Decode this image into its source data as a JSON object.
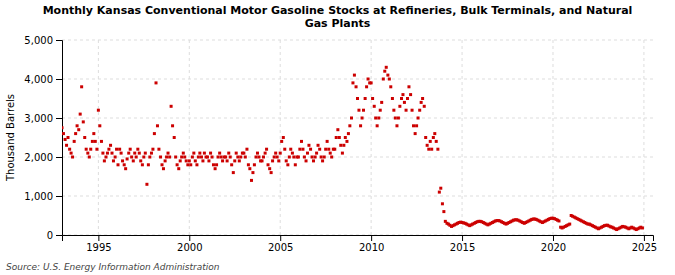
{
  "chart_data": {
    "type": "scatter",
    "title": "Monthly Kansas Conventional Motor Gasoline Stocks at Refineries, Bulk Terminals, and Natural\nGas Plants",
    "ylabel": "Thousand Barrels",
    "annotations": [
      "Source: U.S. Energy Information Administration"
    ],
    "color": "#cc0000",
    "marker": "square",
    "grid": true,
    "xlim": [
      1993.0,
      2025.5
    ],
    "xticks": [
      1995,
      2000,
      2005,
      2010,
      2015,
      2020,
      2025
    ],
    "ylim": [
      0,
      5000
    ],
    "yticks": [
      0,
      {
        "value": 1000,
        "label": "1,000"
      },
      {
        "value": 2000,
        "label": "2,000"
      },
      {
        "value": 3000,
        "label": "3,000"
      },
      {
        "value": 4000,
        "label": "4,000"
      },
      {
        "value": 5000,
        "label": "5,000"
      }
    ],
    "x": [
      1993.0,
      1993.08,
      1993.17,
      1993.25,
      1993.33,
      1993.42,
      1993.5,
      1993.58,
      1993.67,
      1993.75,
      1993.83,
      1993.92,
      1994.0,
      1994.08,
      1994.17,
      1994.25,
      1994.33,
      1994.42,
      1994.5,
      1994.58,
      1994.67,
      1994.75,
      1994.83,
      1994.92,
      1995.0,
      1995.08,
      1995.17,
      1995.25,
      1995.33,
      1995.42,
      1995.5,
      1995.58,
      1995.67,
      1995.75,
      1995.83,
      1995.92,
      1996.0,
      1996.08,
      1996.17,
      1996.25,
      1996.33,
      1996.42,
      1996.5,
      1996.58,
      1996.67,
      1996.75,
      1996.83,
      1996.92,
      1997.0,
      1997.08,
      1997.17,
      1997.25,
      1997.33,
      1997.42,
      1997.5,
      1997.58,
      1997.67,
      1997.75,
      1997.83,
      1997.92,
      1998.0,
      1998.08,
      1998.17,
      1998.25,
      1998.33,
      1998.42,
      1998.5,
      1998.58,
      1998.67,
      1998.75,
      1998.83,
      1998.92,
      1999.0,
      1999.08,
      1999.17,
      1999.25,
      1999.33,
      1999.42,
      1999.5,
      1999.58,
      1999.67,
      1999.75,
      1999.83,
      1999.92,
      2000.0,
      2000.08,
      2000.17,
      2000.25,
      2000.33,
      2000.42,
      2000.5,
      2000.58,
      2000.67,
      2000.75,
      2000.83,
      2000.92,
      2001.0,
      2001.08,
      2001.17,
      2001.25,
      2001.33,
      2001.42,
      2001.5,
      2001.58,
      2001.67,
      2001.75,
      2001.83,
      2001.92,
      2002.0,
      2002.08,
      2002.17,
      2002.25,
      2002.33,
      2002.42,
      2002.5,
      2002.58,
      2002.67,
      2002.75,
      2002.83,
      2002.92,
      2003.0,
      2003.08,
      2003.17,
      2003.25,
      2003.33,
      2003.42,
      2003.5,
      2003.58,
      2003.67,
      2003.75,
      2003.83,
      2003.92,
      2004.0,
      2004.08,
      2004.17,
      2004.25,
      2004.33,
      2004.42,
      2004.5,
      2004.58,
      2004.67,
      2004.75,
      2004.83,
      2004.92,
      2005.0,
      2005.08,
      2005.17,
      2005.25,
      2005.33,
      2005.42,
      2005.5,
      2005.58,
      2005.67,
      2005.75,
      2005.83,
      2005.92,
      2006.0,
      2006.08,
      2006.17,
      2006.25,
      2006.33,
      2006.42,
      2006.5,
      2006.58,
      2006.67,
      2006.75,
      2006.83,
      2006.92,
      2007.0,
      2007.08,
      2007.17,
      2007.25,
      2007.33,
      2007.42,
      2007.5,
      2007.58,
      2007.67,
      2007.75,
      2007.83,
      2007.92,
      2008.0,
      2008.08,
      2008.17,
      2008.25,
      2008.33,
      2008.42,
      2008.5,
      2008.58,
      2008.67,
      2008.75,
      2008.83,
      2008.92,
      2009.0,
      2009.08,
      2009.17,
      2009.25,
      2009.33,
      2009.42,
      2009.5,
      2009.58,
      2009.67,
      2009.75,
      2009.83,
      2009.92,
      2010.0,
      2010.08,
      2010.17,
      2010.25,
      2010.33,
      2010.42,
      2010.5,
      2010.58,
      2010.67,
      2010.75,
      2010.83,
      2010.92,
      2011.0,
      2011.08,
      2011.17,
      2011.25,
      2011.33,
      2011.42,
      2011.5,
      2011.58,
      2011.67,
      2011.75,
      2011.83,
      2011.92,
      2012.0,
      2012.08,
      2012.17,
      2012.25,
      2012.33,
      2012.42,
      2012.5,
      2012.58,
      2012.67,
      2012.75,
      2012.83,
      2012.92,
      2013.0,
      2013.08,
      2013.17,
      2013.25,
      2013.33,
      2013.42,
      2013.5,
      2013.58,
      2013.67,
      2013.75,
      2013.83,
      2013.92,
      2014.0,
      2014.08,
      2014.17,
      2014.25,
      2014.33,
      2014.42,
      2014.5,
      2014.58,
      2014.67,
      2014.75,
      2014.83,
      2014.92,
      2015.0,
      2015.08,
      2015.17,
      2015.25,
      2015.33,
      2015.42,
      2015.5,
      2015.58,
      2015.67,
      2015.75,
      2015.83,
      2015.92,
      2016.0,
      2016.08,
      2016.17,
      2016.25,
      2016.33,
      2016.42,
      2016.5,
      2016.58,
      2016.67,
      2016.75,
      2016.83,
      2016.92,
      2017.0,
      2017.08,
      2017.17,
      2017.25,
      2017.33,
      2017.42,
      2017.5,
      2017.58,
      2017.67,
      2017.75,
      2017.83,
      2017.92,
      2018.0,
      2018.08,
      2018.17,
      2018.25,
      2018.33,
      2018.42,
      2018.5,
      2018.58,
      2018.67,
      2018.75,
      2018.83,
      2018.92,
      2019.0,
      2019.08,
      2019.17,
      2019.25,
      2019.33,
      2019.42,
      2019.5,
      2019.58,
      2019.67,
      2019.75,
      2019.83,
      2019.92,
      2020.0,
      2020.08,
      2020.17,
      2020.25,
      2020.33,
      2020.42,
      2020.5,
      2020.58,
      2020.67,
      2020.75,
      2020.83,
      2020.92,
      2021.0,
      2021.08,
      2021.17,
      2021.25,
      2021.33,
      2021.42,
      2021.5,
      2021.58,
      2021.67,
      2021.75,
      2021.83,
      2021.92,
      2022.0,
      2022.08,
      2022.17,
      2022.25,
      2022.33,
      2022.42,
      2022.5,
      2022.58,
      2022.67,
      2022.75,
      2022.83,
      2022.92,
      2023.0,
      2023.08,
      2023.17,
      2023.25,
      2023.33,
      2023.42,
      2023.5,
      2023.58,
      2023.67,
      2023.75,
      2023.83,
      2023.92,
      2024.0,
      2024.08,
      2024.17,
      2024.25,
      2024.33,
      2024.42,
      2024.5,
      2024.58,
      2024.67,
      2024.75,
      2024.83,
      2024.92
    ],
    "values": [
      2750,
      2600,
      2450,
      2300,
      2500,
      2200,
      2100,
      2000,
      2400,
      2600,
      2800,
      2700,
      3100,
      3800,
      2900,
      2500,
      2200,
      2100,
      2000,
      2200,
      2400,
      2600,
      2400,
      2200,
      3200,
      2800,
      2400,
      2100,
      1900,
      2000,
      2100,
      2200,
      2300,
      2100,
      1900,
      2000,
      2200,
      1800,
      2200,
      2100,
      1900,
      1800,
      1700,
      1950,
      2100,
      2200,
      2000,
      1900,
      2100,
      2000,
      2200,
      2100,
      1900,
      1800,
      2000,
      2100,
      1300,
      1800,
      2000,
      2100,
      2200,
      2600,
      3900,
      2800,
      2200,
      2000,
      1800,
      1700,
      1900,
      2000,
      2100,
      2000,
      3300,
      2800,
      2500,
      2000,
      1800,
      1700,
      1900,
      2000,
      2100,
      2000,
      1900,
      1800,
      1900,
      1800,
      2000,
      2100,
      1900,
      1800,
      2000,
      2100,
      2000,
      1900,
      2100,
      2000,
      2000,
      1900,
      2100,
      2000,
      1800,
      1700,
      1800,
      2000,
      2100,
      2000,
      1900,
      2000,
      2000,
      1900,
      2100,
      2000,
      1800,
      1600,
      1900,
      2100,
      2000,
      1900,
      2000,
      2100,
      2100,
      2000,
      2200,
      1800,
      1700,
      1400,
      1600,
      1800,
      2000,
      2100,
      2000,
      1900,
      1900,
      2000,
      2100,
      2200,
      1800,
      1700,
      1600,
      1900,
      2000,
      2100,
      2000,
      1900,
      2100,
      2400,
      2500,
      2200,
      1900,
      1800,
      2000,
      2200,
      2100,
      2000,
      1800,
      2000,
      2000,
      2200,
      2400,
      2200,
      2000,
      1900,
      2100,
      2300,
      2200,
      2000,
      1900,
      2000,
      2100,
      2300,
      2200,
      2000,
      1900,
      2000,
      2200,
      2400,
      2200,
      2100,
      2000,
      2200,
      2200,
      2500,
      2700,
      2500,
      2300,
      2100,
      2300,
      2500,
      2400,
      2600,
      2800,
      3000,
      3900,
      4100,
      3800,
      3500,
      3200,
      2800,
      3000,
      3200,
      3500,
      3800,
      4000,
      3900,
      3900,
      3500,
      3300,
      3000,
      2800,
      3000,
      3200,
      3400,
      4000,
      4200,
      4300,
      4100,
      4000,
      3800,
      3500,
      3200,
      3000,
      2800,
      3000,
      3300,
      3500,
      3600,
      3400,
      3200,
      3500,
      3800,
      3600,
      3200,
      2800,
      2600,
      2800,
      3000,
      3200,
      3400,
      3500,
      3300,
      2500,
      2300,
      2200,
      2400,
      2200,
      2500,
      2600,
      2400,
      2200,
      1100,
      1200,
      800,
      600,
      350,
      300,
      280,
      250,
      220,
      240,
      260,
      280,
      300,
      320,
      330,
      320,
      310,
      300,
      280,
      260,
      240,
      260,
      280,
      300,
      320,
      340,
      350,
      350,
      340,
      320,
      300,
      280,
      260,
      280,
      300,
      320,
      340,
      360,
      370,
      370,
      360,
      340,
      320,
      300,
      280,
      300,
      320,
      340,
      360,
      380,
      390,
      390,
      380,
      360,
      340,
      320,
      300,
      320,
      340,
      360,
      380,
      400,
      410,
      410,
      400,
      380,
      360,
      340,
      320,
      340,
      360,
      380,
      400,
      420,
      430,
      430,
      420,
      400,
      380,
      360,
      200,
      180,
      200,
      220,
      240,
      260,
      280,
      500,
      480,
      460,
      440,
      420,
      400,
      380,
      360,
      340,
      320,
      300,
      280,
      280,
      260,
      240,
      220,
      200,
      180,
      160,
      180,
      200,
      220,
      240,
      250,
      250,
      230,
      210,
      200,
      180,
      160,
      140,
      160,
      180,
      200,
      220,
      210,
      200,
      180,
      160,
      180,
      200,
      180,
      160,
      140,
      160,
      180,
      200,
      180
    ]
  }
}
